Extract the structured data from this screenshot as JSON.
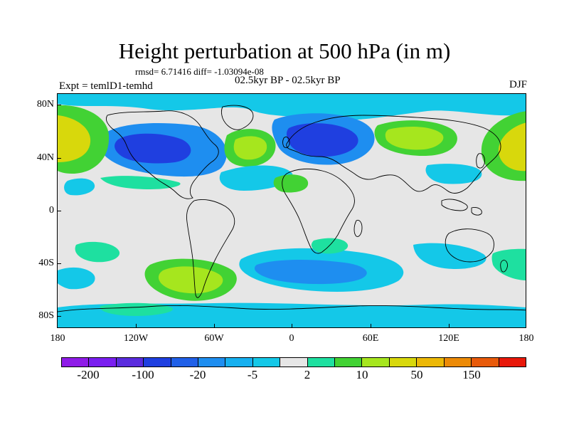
{
  "figure": {
    "title": "Height perturbation at 500 hPa (in m)",
    "stats": "rmsd= 6.71416 diff= -1.03094e-08",
    "period": "02.5kyr BP - 02.5kyr BP",
    "experiment": "Expt = temlD1-temhd",
    "season": "DJF"
  },
  "axes": {
    "lat_labels": [
      "80N",
      "40N",
      "0",
      "40S",
      "80S"
    ],
    "lon_labels": [
      "180",
      "120W",
      "60W",
      "0",
      "60E",
      "120E",
      "180"
    ]
  },
  "colorbar": {
    "colors": [
      "#8f1ce8",
      "#7a1ff0",
      "#5a2cde",
      "#1f3fe0",
      "#2060e8",
      "#1e8ef0",
      "#16b0f0",
      "#14c8e8",
      "#e6e6e6",
      "#1ee0a0",
      "#42d234",
      "#a6e61e",
      "#d8d80c",
      "#ecb806",
      "#ec8a06",
      "#e85a0a",
      "#e8180a"
    ],
    "labels": [
      "-200",
      "-100",
      "-20",
      "-5",
      "2",
      "10",
      "50",
      "150"
    ]
  },
  "anomaly_colors": {
    "strong_neg": "#1f3fe0",
    "neg": "#1e8ef0",
    "weak_neg": "#14c8e8",
    "weak_pos": "#1ee0a0",
    "pos": "#42d234",
    "mid_pos": "#a6e61e",
    "strong_pos": "#d8d80c",
    "neutral": "#e6e6e6"
  }
}
